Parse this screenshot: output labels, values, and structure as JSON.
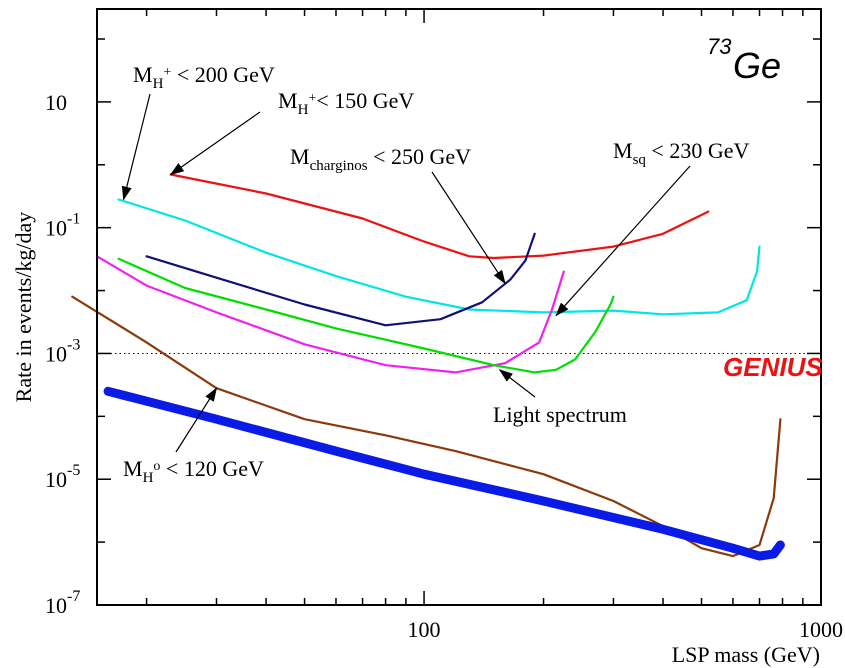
{
  "chart_data": {
    "type": "line",
    "title": "",
    "xlabel": "LSP mass (GeV)",
    "ylabel": "Rate in events/kg/day",
    "xscale": "log",
    "yscale": "log",
    "xlim": [
      15,
      1000
    ],
    "ylim": [
      1e-07,
      300
    ],
    "x_ticks": [
      {
        "value": 100,
        "label": "100"
      },
      {
        "value": 1000,
        "label": "1000"
      }
    ],
    "y_ticks": [
      {
        "value": 10,
        "base": "10",
        "exp": ""
      },
      {
        "value": 0.1,
        "base": "10",
        "exp": "-1"
      },
      {
        "value": 0.001,
        "base": "10",
        "exp": "-3"
      },
      {
        "value": 1e-05,
        "base": "10",
        "exp": "-5"
      },
      {
        "value": 1e-07,
        "base": "10",
        "exp": "-7"
      }
    ],
    "isotope": {
      "mass": "73",
      "symbol": "Ge"
    },
    "genius_label": "GENIUS",
    "threshold_line": {
      "y": 0.001,
      "style": "dotted"
    },
    "series": [
      {
        "key": "mh200",
        "color": "#00e6e6",
        "x": [
          17,
          25,
          40,
          60,
          90,
          130,
          200,
          300,
          400,
          550,
          650,
          690,
          700
        ],
        "y": [
          0.28,
          0.13,
          0.04,
          0.017,
          0.008,
          0.005,
          0.0045,
          0.0048,
          0.0042,
          0.0045,
          0.007,
          0.02,
          0.05
        ]
      },
      {
        "key": "mh150",
        "color": "#ee1111",
        "x": [
          23,
          40,
          70,
          100,
          130,
          150,
          200,
          300,
          400,
          520
        ],
        "y": [
          0.7,
          0.35,
          0.14,
          0.06,
          0.035,
          0.033,
          0.036,
          0.05,
          0.08,
          0.18
        ]
      },
      {
        "key": "charginos",
        "color": "#101078",
        "x": [
          20,
          30,
          50,
          80,
          110,
          140,
          165,
          180,
          190
        ],
        "y": [
          0.035,
          0.016,
          0.006,
          0.0028,
          0.0035,
          0.0065,
          0.015,
          0.03,
          0.08
        ]
      },
      {
        "key": "msq",
        "color": "#ee22ee",
        "x": [
          15,
          20,
          30,
          50,
          80,
          120,
          160,
          195,
          210,
          225
        ],
        "y": [
          0.035,
          0.012,
          0.0045,
          0.0014,
          0.00065,
          0.0005,
          0.0007,
          0.0015,
          0.005,
          0.02
        ]
      },
      {
        "key": "light",
        "color": "#00dd00",
        "x": [
          17,
          25,
          40,
          60,
          100,
          150,
          190,
          215,
          240,
          270,
          295,
          300
        ],
        "y": [
          0.032,
          0.011,
          0.005,
          0.0025,
          0.0012,
          0.00065,
          0.0005,
          0.00055,
          0.0008,
          0.0022,
          0.006,
          0.008
        ]
      },
      {
        "key": "mh0",
        "color": "#8b3a0a",
        "x": [
          13,
          20,
          30,
          50,
          80,
          120,
          200,
          300,
          400,
          500,
          600,
          700,
          760,
          790
        ],
        "y": [
          0.008,
          0.0015,
          0.00028,
          9e-05,
          5e-05,
          2.8e-05,
          1.2e-05,
          4.5e-06,
          1.8e-06,
          8e-07,
          6e-07,
          9e-07,
          5e-06,
          9e-05
        ]
      },
      {
        "key": "genius",
        "color": "#0a1be6",
        "x": [
          16,
          30,
          60,
          100,
          200,
          400,
          600,
          700,
          760,
          790
        ],
        "y": [
          0.00025,
          9e-05,
          2.8e-05,
          1.2e-05,
          4.5e-06,
          1.6e-06,
          8e-07,
          6e-07,
          6.5e-07,
          9e-07
        ]
      }
    ],
    "annotations": [
      {
        "key": "mh200",
        "parts": [
          "M",
          "H",
          "+",
          " < 200 GeV"
        ],
        "arrow_to": [
          17.5,
          0.28
        ]
      },
      {
        "key": "mh150",
        "parts": [
          "M",
          "H",
          "+",
          "< 150 GeV"
        ],
        "arrow_to": [
          23,
          0.7
        ]
      },
      {
        "key": "charginos",
        "parts": [
          "M",
          "charginos",
          "",
          " < 250 GeV"
        ],
        "arrow_to": [
          160,
          0.013
        ]
      },
      {
        "key": "msq",
        "parts": [
          "M",
          "sq",
          "",
          " < 230 GeV"
        ],
        "arrow_to": [
          215,
          0.004
        ]
      },
      {
        "key": "light",
        "parts": [
          "Light spectrum",
          "",
          "",
          ""
        ],
        "arrow_to": [
          155,
          0.00055
        ]
      },
      {
        "key": "mh0",
        "parts": [
          "M",
          "H",
          "o",
          " < 120 GeV"
        ],
        "arrow_to": [
          30,
          0.00028
        ]
      }
    ],
    "grid": false,
    "legend": "none"
  }
}
